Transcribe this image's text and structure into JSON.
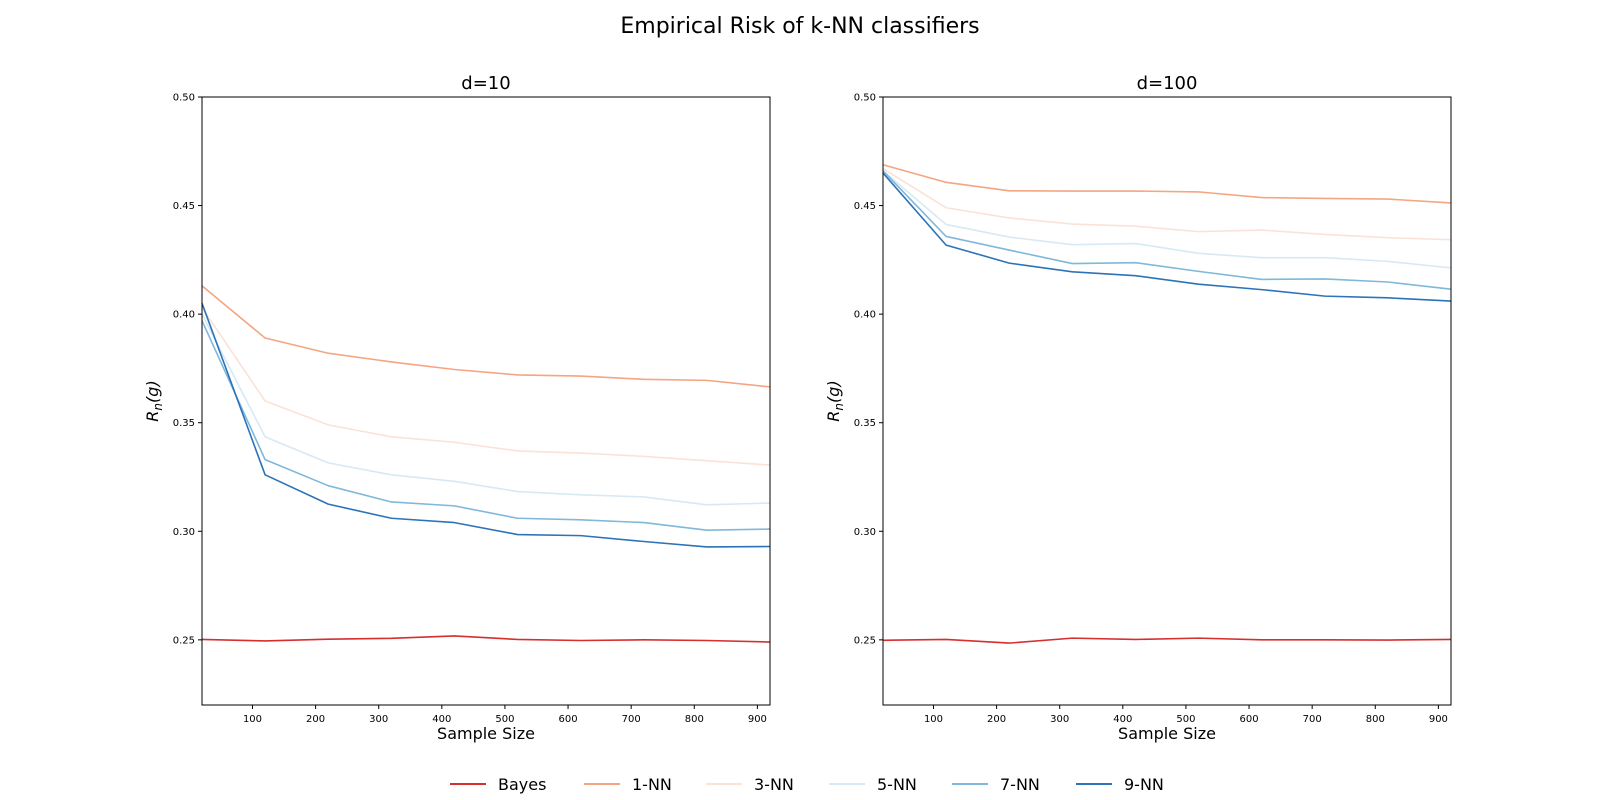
{
  "figure": {
    "title": "Empirical Risk of k-NN classifiers"
  },
  "legend": {
    "placement": "bottom-center"
  },
  "chart_data": [
    {
      "type": "line",
      "title": "d=10",
      "xlabel": "Sample Size",
      "ylabel": "R_n(g)",
      "xlim": [
        20,
        920
      ],
      "ylim": [
        0.22,
        0.5
      ],
      "xticks": [
        100,
        200,
        300,
        400,
        500,
        600,
        700,
        800,
        900
      ],
      "yticks": [
        0.25,
        0.3,
        0.35,
        0.4,
        0.45,
        0.5
      ],
      "x": [
        20,
        120,
        220,
        320,
        420,
        520,
        620,
        720,
        820,
        920
      ],
      "grid": false,
      "series": [
        {
          "name": "Bayes",
          "color": "#d62f2f",
          "values": [
            0.2502,
            0.2495,
            0.2503,
            0.2507,
            0.2518,
            0.2502,
            0.2497,
            0.25,
            0.2497,
            0.249
          ]
        },
        {
          "name": "1-NN",
          "color": "#f4a582",
          "values": [
            0.413,
            0.389,
            0.382,
            0.378,
            0.3745,
            0.372,
            0.3715,
            0.37,
            0.3695,
            0.3665
          ]
        },
        {
          "name": "3-NN",
          "color": "#fbe2d6",
          "values": [
            0.403,
            0.36,
            0.349,
            0.3435,
            0.341,
            0.337,
            0.336,
            0.3345,
            0.3325,
            0.3305
          ]
        },
        {
          "name": "5-NN",
          "color": "#d7e9f5",
          "values": [
            0.4,
            0.3435,
            0.3315,
            0.326,
            0.323,
            0.3183,
            0.3168,
            0.3158,
            0.3122,
            0.313
          ]
        },
        {
          "name": "7-NN",
          "color": "#7fb8da",
          "values": [
            0.397,
            0.333,
            0.321,
            0.3135,
            0.3117,
            0.306,
            0.3053,
            0.304,
            0.3005,
            0.301
          ]
        },
        {
          "name": "9-NN",
          "color": "#2c73b8",
          "values": [
            0.405,
            0.326,
            0.3125,
            0.306,
            0.304,
            0.2985,
            0.298,
            0.2953,
            0.2928,
            0.293
          ]
        }
      ]
    },
    {
      "type": "line",
      "title": "d=100",
      "xlabel": "Sample Size",
      "ylabel": "R_n(g)",
      "xlim": [
        20,
        920
      ],
      "ylim": [
        0.22,
        0.5
      ],
      "xticks": [
        100,
        200,
        300,
        400,
        500,
        600,
        700,
        800,
        900
      ],
      "yticks": [
        0.25,
        0.3,
        0.35,
        0.4,
        0.45,
        0.5
      ],
      "x": [
        20,
        120,
        220,
        320,
        420,
        520,
        620,
        720,
        820,
        920
      ],
      "grid": false,
      "series": [
        {
          "name": "Bayes",
          "color": "#d62f2f",
          "values": [
            0.2498,
            0.2502,
            0.2485,
            0.2508,
            0.2502,
            0.2508,
            0.25,
            0.25,
            0.2499,
            0.2502
          ]
        },
        {
          "name": "1-NN",
          "color": "#f4a582",
          "values": [
            0.4688,
            0.4607,
            0.4568,
            0.4567,
            0.4567,
            0.4563,
            0.4537,
            0.4533,
            0.453,
            0.4512
          ]
        },
        {
          "name": "3-NN",
          "color": "#fbe2d6",
          "values": [
            0.467,
            0.449,
            0.4443,
            0.4415,
            0.4405,
            0.438,
            0.4387,
            0.4367,
            0.4352,
            0.4343
          ]
        },
        {
          "name": "5-NN",
          "color": "#d7e9f5",
          "values": [
            0.466,
            0.4413,
            0.4355,
            0.432,
            0.4325,
            0.428,
            0.426,
            0.426,
            0.4243,
            0.4213
          ]
        },
        {
          "name": "7-NN",
          "color": "#7fb8da",
          "values": [
            0.466,
            0.4358,
            0.4295,
            0.4233,
            0.4237,
            0.4197,
            0.416,
            0.4162,
            0.4148,
            0.4115
          ]
        },
        {
          "name": "9-NN",
          "color": "#2c73b8",
          "values": [
            0.465,
            0.4318,
            0.4235,
            0.4195,
            0.4177,
            0.4138,
            0.4113,
            0.4083,
            0.4075,
            0.406
          ]
        }
      ]
    }
  ]
}
